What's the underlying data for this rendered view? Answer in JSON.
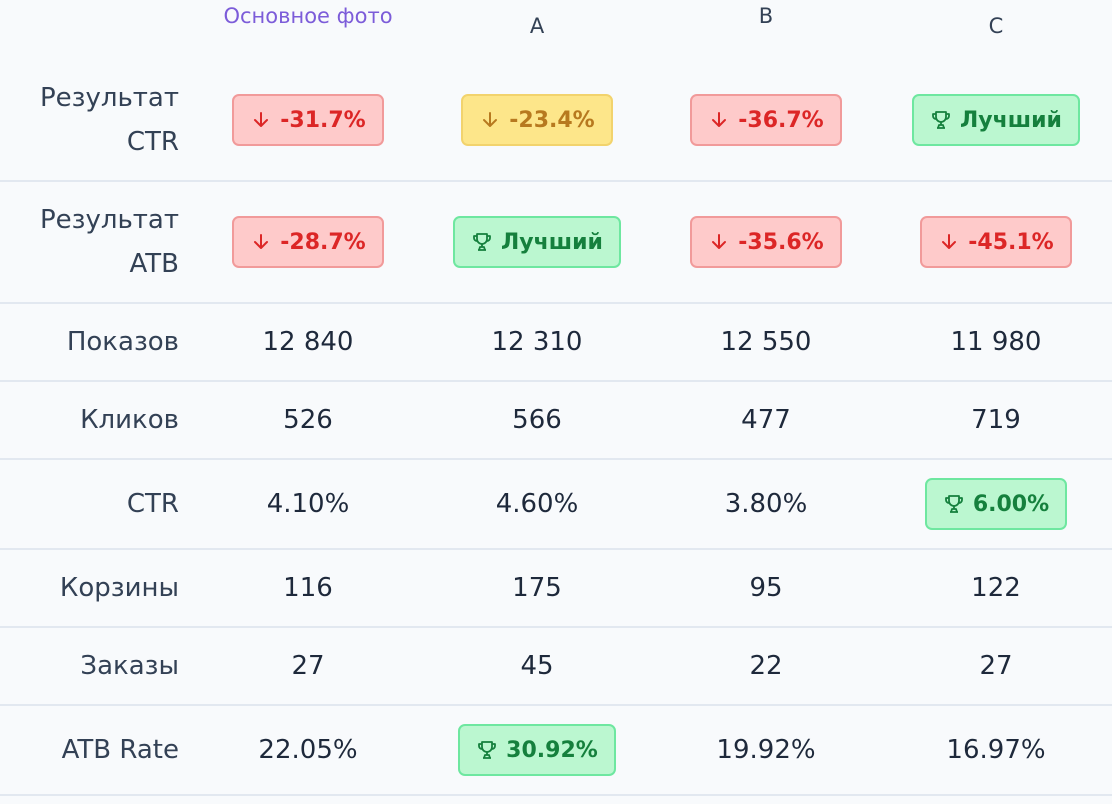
{
  "columns": [
    "Основное фото",
    "A",
    "B",
    "C"
  ],
  "rows": [
    {
      "label": "Результат\nCTR",
      "cells": [
        {
          "type": "badge",
          "tone": "red",
          "icon": "arrow-down-icon",
          "text": "-31.7%"
        },
        {
          "type": "badge",
          "tone": "yellow",
          "icon": "arrow-down-icon",
          "text": "-23.4%"
        },
        {
          "type": "badge",
          "tone": "red",
          "icon": "arrow-down-icon",
          "text": "-36.7%"
        },
        {
          "type": "badge",
          "tone": "green",
          "icon": "trophy-icon",
          "text": "Лучший"
        }
      ]
    },
    {
      "label": "Результат\nATB",
      "cells": [
        {
          "type": "badge",
          "tone": "red",
          "icon": "arrow-down-icon",
          "text": "-28.7%"
        },
        {
          "type": "badge",
          "tone": "green",
          "icon": "trophy-icon",
          "text": "Лучший"
        },
        {
          "type": "badge",
          "tone": "red",
          "icon": "arrow-down-icon",
          "text": "-35.6%"
        },
        {
          "type": "badge",
          "tone": "red",
          "icon": "arrow-down-icon",
          "text": "-45.1%"
        }
      ]
    },
    {
      "label": "Показов",
      "cells": [
        {
          "type": "text",
          "text": "12 840"
        },
        {
          "type": "text",
          "text": "12 310"
        },
        {
          "type": "text",
          "text": "12 550"
        },
        {
          "type": "text",
          "text": "11 980"
        }
      ]
    },
    {
      "label": "Кликов",
      "cells": [
        {
          "type": "text",
          "text": "526"
        },
        {
          "type": "text",
          "text": "566"
        },
        {
          "type": "text",
          "text": "477"
        },
        {
          "type": "text",
          "text": "719"
        }
      ]
    },
    {
      "label": "CTR",
      "cells": [
        {
          "type": "text",
          "text": "4.10%"
        },
        {
          "type": "text",
          "text": "4.60%"
        },
        {
          "type": "text",
          "text": "3.80%"
        },
        {
          "type": "badge",
          "tone": "green",
          "icon": "trophy-icon",
          "text": "6.00%"
        }
      ]
    },
    {
      "label": "Корзины",
      "cells": [
        {
          "type": "text",
          "text": "116"
        },
        {
          "type": "text",
          "text": "175"
        },
        {
          "type": "text",
          "text": "95"
        },
        {
          "type": "text",
          "text": "122"
        }
      ]
    },
    {
      "label": "Заказы",
      "cells": [
        {
          "type": "text",
          "text": "27"
        },
        {
          "type": "text",
          "text": "45"
        },
        {
          "type": "text",
          "text": "22"
        },
        {
          "type": "text",
          "text": "27"
        }
      ]
    },
    {
      "label": "ATB Rate",
      "cells": [
        {
          "type": "text",
          "text": "22.05%"
        },
        {
          "type": "badge",
          "tone": "green",
          "icon": "trophy-icon",
          "text": "30.92%"
        },
        {
          "type": "text",
          "text": "19.92%"
        },
        {
          "type": "text",
          "text": "16.97%"
        }
      ]
    }
  ],
  "colors": {
    "background": "#f8fafc",
    "header_primary": "#7c5cd9",
    "badge_red_bg": "#fecaca",
    "badge_red_text": "#dc2626",
    "badge_yellow_bg": "#fde68a",
    "badge_yellow_text": "#b7791f",
    "badge_green_bg": "#bbf7d0",
    "badge_green_text": "#15803d"
  }
}
